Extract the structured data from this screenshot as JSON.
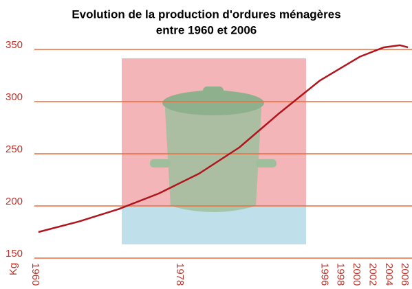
{
  "chart_data": {
    "type": "line",
    "title": "Evolution de la production d'ordures ménagères",
    "subtitle": "entre 1960 et 2006",
    "y_label": "Kg",
    "x": [
      1960,
      1965,
      1970,
      1975,
      1980,
      1985,
      1990,
      1995,
      2000,
      2003,
      2005,
      2006
    ],
    "series": [
      {
        "name": "Kg",
        "color": "#b0141c",
        "values": [
          175,
          185,
          197,
          212,
          231,
          256,
          289,
          320,
          343,
          352,
          354,
          352
        ]
      }
    ],
    "xlim": [
      1959.5,
      2006.5
    ],
    "xticks": [
      1960,
      1978,
      1996,
      1998,
      2000,
      2002,
      2004,
      2006
    ],
    "ylim": [
      150,
      350
    ],
    "yticks": [
      150,
      200,
      250,
      300,
      350
    ],
    "grid": true,
    "grid_color": "#ee6a3a"
  }
}
